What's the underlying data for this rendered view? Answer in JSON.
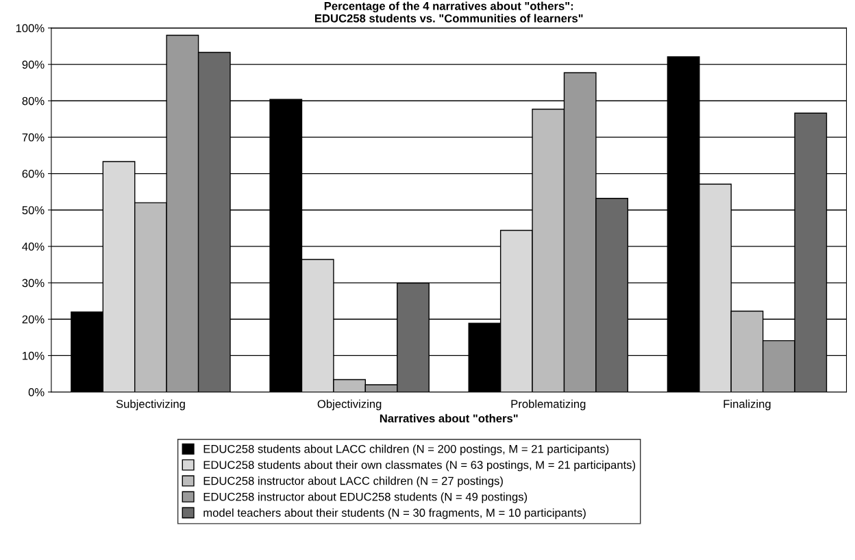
{
  "chart_data": {
    "type": "bar",
    "title": "Percentage of the 4 narratives about \"others\":\nEDUC258 students vs. \"Communities of learners\"",
    "xlabel": "Narratives about \"others\"",
    "categories": [
      "Subjectivizing",
      "Objectivizing",
      "Problematizing",
      "Finalizing"
    ],
    "series": [
      {
        "name": "EDUC258 students about LACC children (N = 200 postings, M = 21 participants)",
        "color": "#000000",
        "values": [
          22,
          80.4,
          18.9,
          92.1
        ]
      },
      {
        "name": "EDUC258 students about their own classmates (N = 63 postings, M = 21 participants)",
        "color": "#d8d8d8",
        "values": [
          63.3,
          36.4,
          44.4,
          57.1
        ]
      },
      {
        "name": "EDUC258 instructor about LACC children (N = 27 postings)",
        "color": "#bcbcbc",
        "values": [
          52,
          3.4,
          77.7,
          22.2
        ]
      },
      {
        "name": "EDUC258 instructor about EDUC258 students (N = 49 postings)",
        "color": "#9a9a9a",
        "values": [
          98,
          2,
          87.7,
          14.1
        ]
      },
      {
        "name": "model teachers about their students (N = 30 fragments, M = 10 participants)",
        "color": "#6a6a6a",
        "values": [
          93.3,
          29.9,
          53.2,
          76.6
        ]
      }
    ],
    "ylim": [
      0,
      100
    ],
    "yticks": [
      {
        "value": 0,
        "label": "0%"
      },
      {
        "value": 10,
        "label": "10%"
      },
      {
        "value": 20,
        "label": "20%"
      },
      {
        "value": 30,
        "label": "30%"
      },
      {
        "value": 40,
        "label": "40%"
      },
      {
        "value": 50,
        "label": "50%"
      },
      {
        "value": 60,
        "label": "60%"
      },
      {
        "value": 70,
        "label": "70%"
      },
      {
        "value": 80,
        "label": "80%"
      },
      {
        "value": 90,
        "label": "90%"
      },
      {
        "value": 100,
        "label": "100%"
      }
    ],
    "grid": "y",
    "legend": "bottom"
  }
}
